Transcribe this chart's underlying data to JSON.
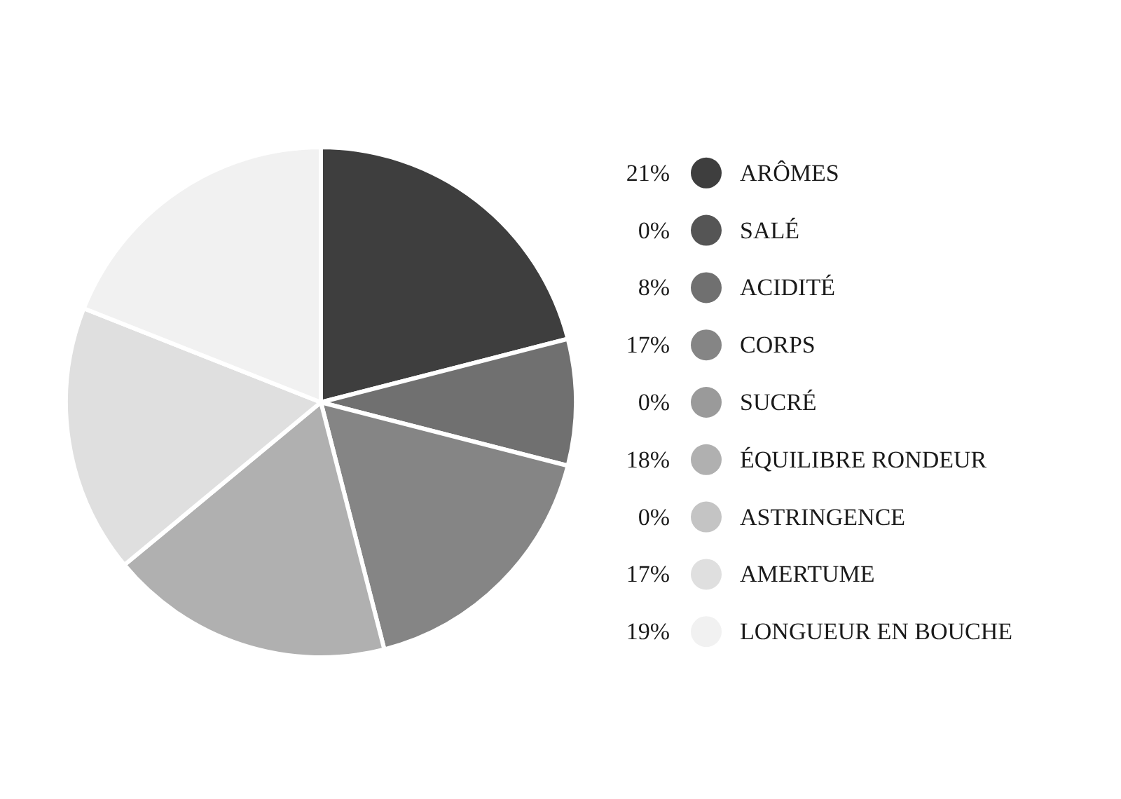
{
  "chart_data": {
    "type": "pie",
    "categories": [
      "ARÔMES",
      "SALÉ",
      "ACIDITÉ",
      "CORPS",
      "SUCRÉ",
      "ÉQUILIBRE RONDEUR",
      "ASTRINGENCE",
      "AMERTUME",
      "LONGUEUR EN BOUCHE"
    ],
    "values": [
      21,
      0,
      8,
      17,
      0,
      18,
      0,
      17,
      19
    ],
    "value_labels": [
      "21%",
      "0%",
      "8%",
      "17%",
      "0%",
      "18%",
      "0%",
      "17%",
      "19%"
    ],
    "colors": [
      "#3e3e3e",
      "#555555",
      "#707070",
      "#858585",
      "#9a9a9a",
      "#b0b0b0",
      "#c4c4c4",
      "#dfdfdf",
      "#f1f1f1"
    ],
    "legend": "right"
  }
}
